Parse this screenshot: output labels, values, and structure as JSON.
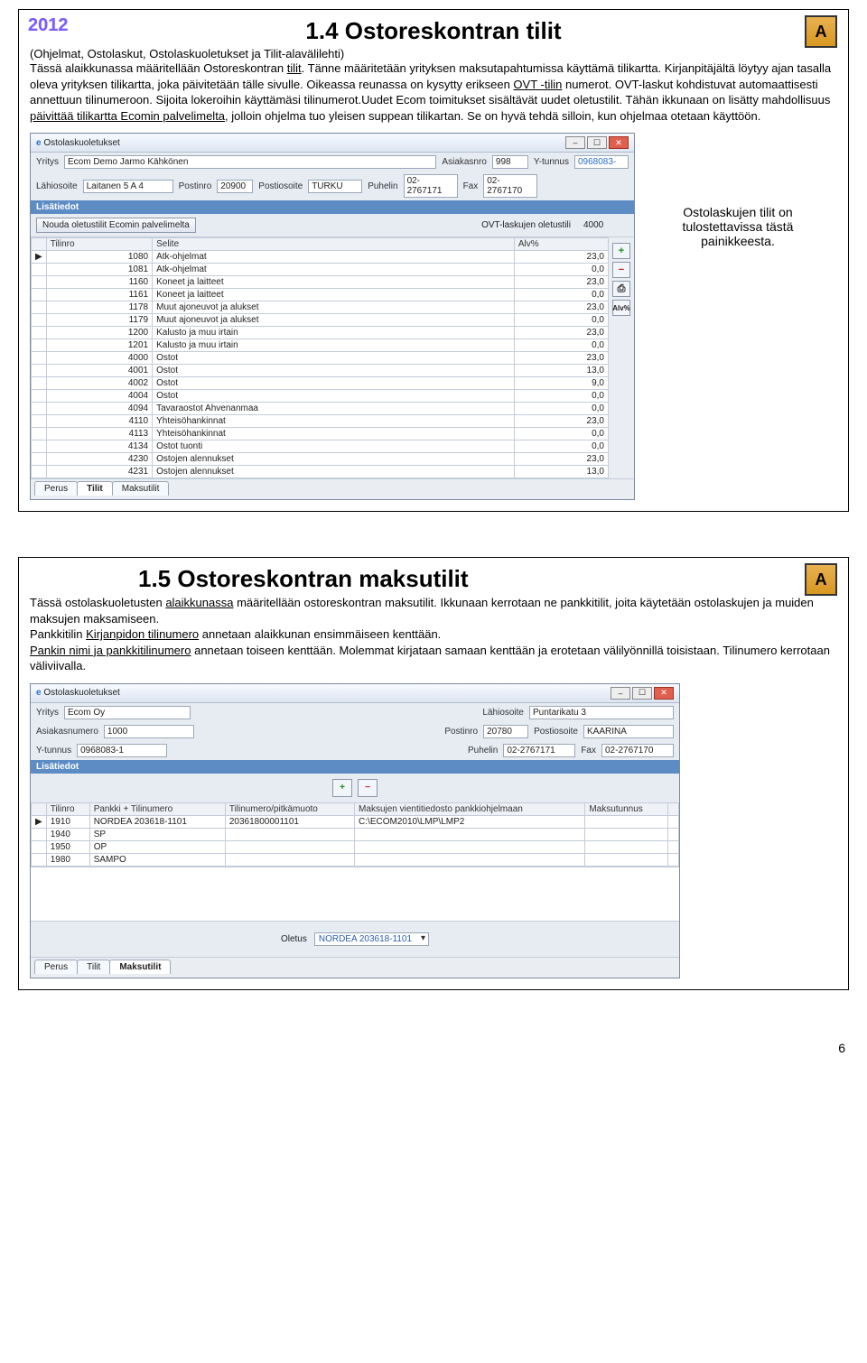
{
  "page_number": "6",
  "section1": {
    "year": "2012",
    "title": "1.4 Ostoreskontran tilit",
    "subtitle": "(Ohjelmat, Ostolaskut, Ostolaskuoletukset ja Tilit-alavälilehti)",
    "icon_letter": "A",
    "paragraph_html": "Tässä alaikkunassa määritellään Ostoreskontran <u>tilit</u>. Tänne määritetään yrityksen maksutapahtumissa käyttämä tilikartta. Kirjanpitäjältä löytyy ajan tasalla oleva yrityksen tilikartta, joka päivitetään tälle sivulle. Oikeassa reunassa on kysytty erikseen <u>OVT -tilin</u> numerot. OVT-laskut kohdistuvat automaattisesti annettuun tilinumeroon. Sijoita lokeroihin käyttämäsi tilinumerot.Uudet Ecom toimitukset sisältävät uudet oletustilit. Tähän ikkunaan on lisätty mahdollisuus <u>päivittää tilikartta Ecomin palvelimelta</u>, jolloin ohjelma tuo yleisen suppean tilikartan. Se on hyvä tehdä silloin, kun ohjelmaa otetaan käyttöön.",
    "side_note": "Ostolaskujen tilit on tulostettavissa tästä painikkeesta.",
    "window": {
      "title": "Ostolaskuoletukset",
      "yritys_label": "Yritys",
      "yritys": "Ecom Demo Jarmo Kähkönen",
      "asiakasnro_label": "Asiakasnro",
      "asiakasnro": "998",
      "ytunnus_label": "Y-tunnus",
      "ytunnus": "0968083-",
      "lahiosoite_label": "Lähiosoite",
      "lahiosoite": "Laitanen 5 A 4",
      "postinro_label": "Postinro",
      "postinro": "20900",
      "postiosoite_label": "Postiosoite",
      "postiosoite": "TURKU",
      "puhelin_label": "Puhelin",
      "puhelin": "02-2767171",
      "fax_label": "Fax",
      "fax": "02-2767170",
      "lisatiedot": "Lisätiedot",
      "fetch_btn": "Nouda oletustilit Ecomin palvelimelta",
      "ovt_label": "OVT-laskujen oletustili",
      "ovt_value": "4000",
      "cols": {
        "tilinro": "Tilinro",
        "selite": "Selite",
        "alv": "Alv%"
      },
      "rows": [
        {
          "t": "1080",
          "s": "Atk-ohjelmat",
          "a": "23,0"
        },
        {
          "t": "1081",
          "s": "Atk-ohjelmat",
          "a": "0,0"
        },
        {
          "t": "1160",
          "s": "Koneet ja laitteet",
          "a": "23,0"
        },
        {
          "t": "1161",
          "s": "Koneet ja laitteet",
          "a": "0,0"
        },
        {
          "t": "1178",
          "s": "Muut ajoneuvot ja alukset",
          "a": "23,0"
        },
        {
          "t": "1179",
          "s": "Muut ajoneuvot ja alukset",
          "a": "0,0"
        },
        {
          "t": "1200",
          "s": "Kalusto ja muu irtain",
          "a": "23,0"
        },
        {
          "t": "1201",
          "s": "Kalusto ja muu irtain",
          "a": "0,0"
        },
        {
          "t": "4000",
          "s": "Ostot",
          "a": "23,0"
        },
        {
          "t": "4001",
          "s": "Ostot",
          "a": "13,0"
        },
        {
          "t": "4002",
          "s": "Ostot",
          "a": "9,0"
        },
        {
          "t": "4004",
          "s": "Ostot",
          "a": "0,0"
        },
        {
          "t": "4094",
          "s": "Tavaraostot Ahvenanmaa",
          "a": "0,0"
        },
        {
          "t": "4110",
          "s": "Yhteisöhankinnat",
          "a": "23,0"
        },
        {
          "t": "4113",
          "s": "Yhteisöhankinnat",
          "a": "0,0"
        },
        {
          "t": "4134",
          "s": "Ostot tuonti",
          "a": "0,0"
        },
        {
          "t": "4230",
          "s": "Ostojen alennukset",
          "a": "23,0"
        },
        {
          "t": "4231",
          "s": "Ostojen alennukset",
          "a": "13,0"
        }
      ],
      "side_btns": {
        "add": "+",
        "del": "−",
        "print": "⎙",
        "alv": "Alv%"
      },
      "tabs": {
        "perus": "Perus",
        "tilit": "Tilit",
        "maksutilit": "Maksutilit"
      }
    }
  },
  "section2": {
    "title": "1.5 Ostoreskontran maksutilit",
    "icon_letter": "A",
    "paragraph_html": "Tässä ostolaskuoletusten <u>alaikkunassa</u> määritellään ostoreskontran maksutilit. Ikkunaan kerrotaan ne pankkitilit, joita käytetään ostolaskujen ja muiden maksujen maksamiseen.<br>Pankkitilin <u>Kirjanpidon tilinumero</u> annetaan alaikkunan ensimmäiseen kenttään.<br><u>Pankin nimi ja pankkitilinumero</u> annetaan toiseen kenttään. Molemmat kirjataan samaan kenttään ja erotetaan välilyönnillä toisistaan. Tilinumero kerrotaan väliviivalla.",
    "window": {
      "title": "Ostolaskuoletukset",
      "yritys_label": "Yritys",
      "yritys": "Ecom Oy",
      "lahiosoite_label": "Lähiosoite",
      "lahiosoite": "Puntarikatu 3",
      "asiakasnumero_label": "Asiakasnumero",
      "asiakasnumero": "1000",
      "postinro_label": "Postinro",
      "postinro": "20780",
      "postiosoite_label": "Postiosoite",
      "postiosoite": "KAARINA",
      "ytunnus_label": "Y-tunnus",
      "ytunnus": "0968083-1",
      "puhelin_label": "Puhelin",
      "puhelin": "02-2767171",
      "fax_label": "Fax",
      "fax": "02-2767170",
      "lisatiedot": "Lisätiedot",
      "cols": {
        "tilinro": "Tilinro",
        "pankki": "Pankki + Tilinumero",
        "pitka": "Tilinumero/pitkämuoto",
        "vienti": "Maksujen vientitiedosto pankkiohjelmaan",
        "tunnus": "Maksutunnus"
      },
      "rows": [
        {
          "t": "1910",
          "p": "NORDEA 203618-1101",
          "pk": "20361800001101",
          "v": "C:\\ECOM2010\\LMP\\LMP2",
          "m": ""
        },
        {
          "t": "1940",
          "p": "SP",
          "pk": "",
          "v": "",
          "m": ""
        },
        {
          "t": "1950",
          "p": "OP",
          "pk": "",
          "v": "",
          "m": ""
        },
        {
          "t": "1980",
          "p": "SAMPO",
          "pk": "",
          "v": "",
          "m": ""
        }
      ],
      "oletus_label": "Oletus",
      "oletus_value": "NORDEA 203618-1101",
      "tabs": {
        "perus": "Perus",
        "tilit": "Tilit",
        "maksutilit": "Maksutilit"
      },
      "side_btns": {
        "add": "+",
        "del": "−"
      }
    }
  }
}
